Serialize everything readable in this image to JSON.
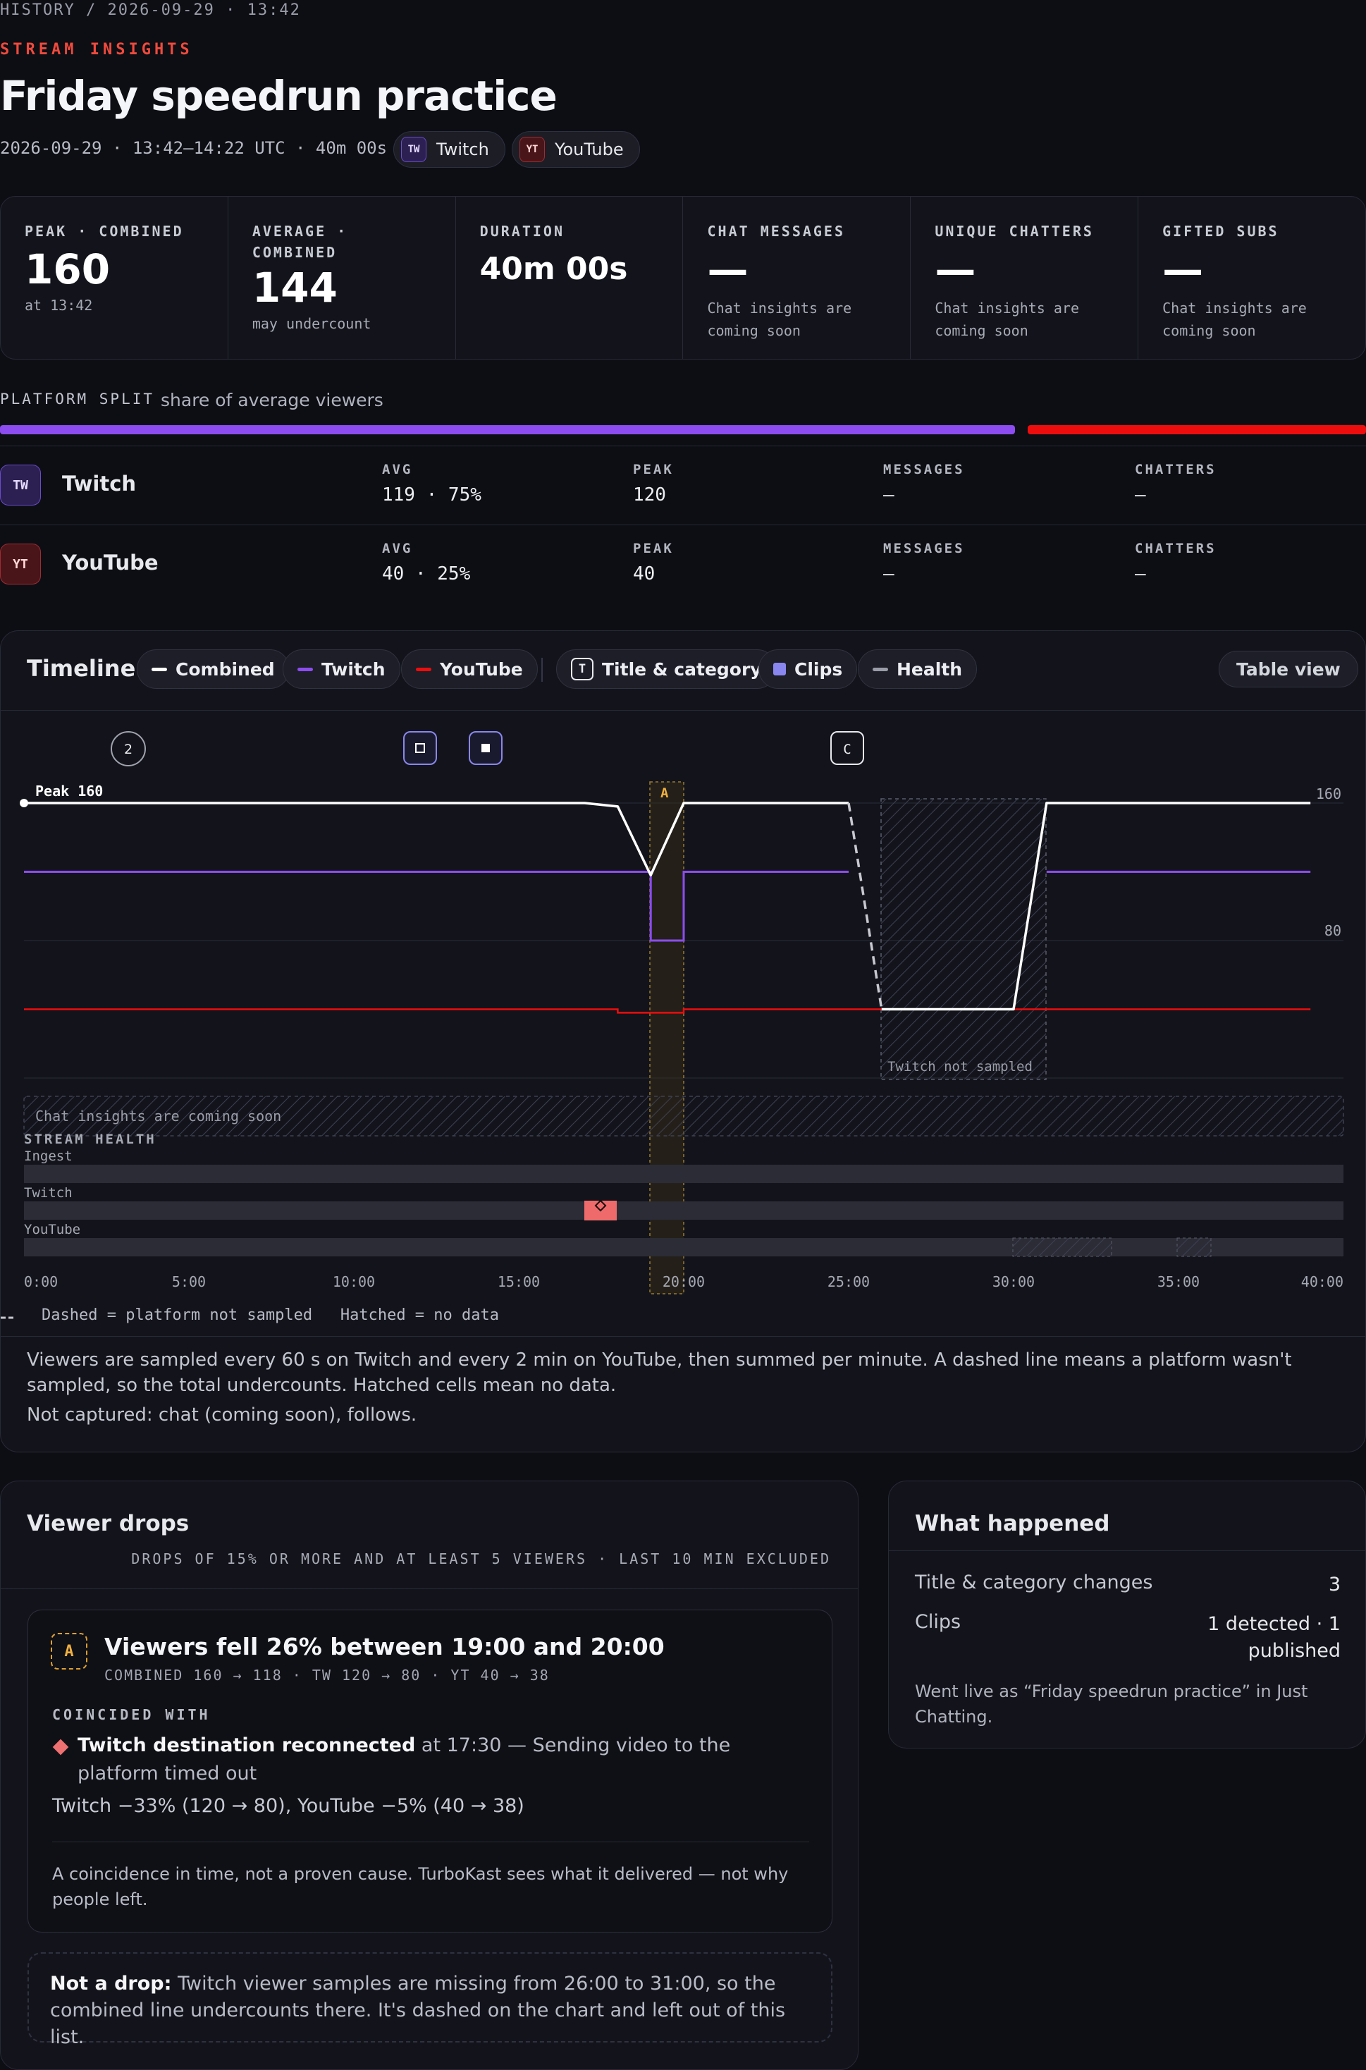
{
  "breadcrumb": "HISTORY / 2026-09-29 · 13:42",
  "eyebrow": "STREAM INSIGHTS",
  "title": "Friday speedrun practice",
  "meta": "2026-09-29 · 13:42–14:22 UTC · 40m 00s",
  "platforms": [
    {
      "badge": "TW",
      "name": "Twitch",
      "color": "#8c4cf0"
    },
    {
      "badge": "YT",
      "name": "YouTube",
      "color": "#ee0d0d"
    }
  ],
  "stats": [
    {
      "label": "PEAK · COMBINED",
      "value": "160",
      "sub": "at 13:42"
    },
    {
      "label": "AVERAGE · COMBINED",
      "value": "144",
      "sub": "may undercount"
    },
    {
      "label": "DURATION",
      "value": "40m 00s",
      "sub": ""
    },
    {
      "label": "CHAT MESSAGES",
      "value": "—",
      "sub": "Chat insights are coming soon"
    },
    {
      "label": "UNIQUE CHATTERS",
      "value": "—",
      "sub": "Chat insights are coming soon"
    },
    {
      "label": "GIFTED SUBS",
      "value": "—",
      "sub": "Chat insights are coming soon"
    }
  ],
  "platform_split": {
    "label": "PLATFORM SPLIT",
    "sub": "share of average viewers",
    "twitch_share": 0.75,
    "youtube_share": 0.25,
    "col_labels": {
      "avg": "AVG",
      "peak": "PEAK",
      "messages": "MESSAGES",
      "chatters": "CHATTERS"
    },
    "rows": [
      {
        "avg": "119 · 75%",
        "peak": "120",
        "messages": "—",
        "chatters": "—"
      },
      {
        "avg": "40 · 25%",
        "peak": "40",
        "messages": "—",
        "chatters": "—"
      }
    ]
  },
  "timeline": {
    "title": "Timeline",
    "toggles": {
      "combined": "Combined",
      "twitch": "Twitch",
      "youtube": "YouTube",
      "title_category": "Title & category",
      "title_icon": "T",
      "clips": "Clips",
      "health": "Health"
    },
    "table_view": "Table view",
    "peak_label": "Peak 160",
    "y_ticks": [
      "160",
      "80"
    ],
    "x_ticks": [
      "0:00",
      "5:00",
      "10:00",
      "15:00",
      "20:00",
      "25:00",
      "30:00",
      "35:00",
      "40:00"
    ],
    "markers": {
      "m2": "2",
      "c": "C",
      "a": "A"
    },
    "not_sampled": "Twitch not sampled",
    "chat_placeholder": "Chat insights are coming soon",
    "health_title": "STREAM HEALTH",
    "health_rows": [
      "Ingest",
      "Twitch",
      "YouTube"
    ],
    "legend": "Dashed = platform not sampled   Hatched = no data",
    "note": "Viewers are sampled every 60 s on Twitch and every 2 min on YouTube, then summed per minute. A dashed line means a platform wasn't sampled, so the total undercounts. Hatched cells mean no data.",
    "not_captured": "Not captured: chat (coming soon), follows."
  },
  "chart_data": {
    "type": "line",
    "xlabel": "",
    "ylabel": "",
    "xlim": [
      0,
      40
    ],
    "ylim": [
      0,
      160
    ],
    "series": [
      {
        "name": "Combined",
        "color": "#ffffff",
        "x": [
          0,
          17,
          18,
          19,
          20,
          25,
          26,
          30,
          31,
          39
        ],
        "y": [
          160,
          160,
          158,
          118,
          160,
          160,
          40,
          40,
          160,
          160
        ]
      },
      {
        "name": "Twitch",
        "color": "#8c4cf0",
        "x": [
          0,
          19,
          19,
          20,
          20,
          25
        ],
        "y": [
          120,
          120,
          80,
          80,
          120,
          120
        ],
        "x2": [
          31,
          39
        ],
        "y2": [
          120,
          120
        ]
      },
      {
        "name": "YouTube",
        "color": "#ee0d0d",
        "x": [
          0,
          18,
          18,
          20,
          20,
          39
        ],
        "y": [
          40,
          40,
          38,
          38,
          40,
          40
        ]
      }
    ]
  },
  "drops": {
    "title": "Viewer drops",
    "criteria": "DROPS OF 15% OR MORE AND AT LEAST 5 VIEWERS · LAST 10 MIN EXCLUDED",
    "badge": "A",
    "headline": "Viewers fell 26% between 19:00 and 20:00",
    "detail": "COMBINED 160 → 118 · TW 120 → 80 · YT 40 → 38",
    "coincided": "COINCIDED WITH",
    "event_strong": "Twitch destination reconnected",
    "event_rest": " at 17:30 — Sending video to the platform timed out",
    "delta": "Twitch −33% (120 → 80), YouTube −5% (40 → 38)",
    "caveat": "A coincidence in time, not a proven cause. TurboKast sees what it delivered — not why people left.",
    "not_drop_strong": "Not a drop:",
    "not_drop_rest": " Twitch viewer samples are missing from 26:00 to 31:00, so the combined line undercounts there. It's dashed on the chart and left out of this list."
  },
  "what_happened": {
    "title": "What happened",
    "rows": [
      {
        "label": "Title & category changes",
        "value": "3"
      },
      {
        "label": "Clips",
        "value": "1 detected · 1 published"
      }
    ],
    "live": "Went live as “Friday speedrun practice” in Just Chatting."
  }
}
